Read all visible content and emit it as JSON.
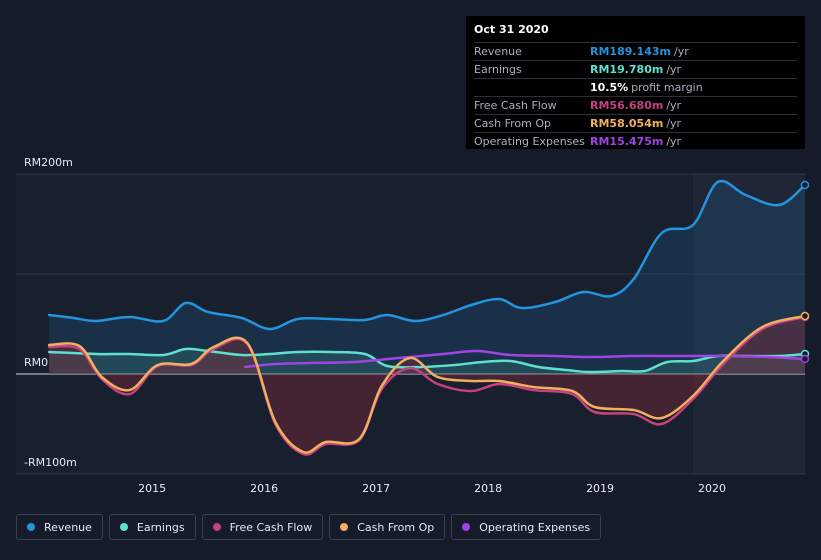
{
  "chart_data": {
    "type": "area",
    "y_tick_labels": [
      {
        "label": "RM200m",
        "value": 200
      },
      {
        "label": "RM0",
        "value": 0
      },
      {
        "label": "-RM100m",
        "value": -100
      }
    ],
    "ylim": [
      -100,
      200
    ],
    "x_tick_labels": [
      "2015",
      "2016",
      "2017",
      "2018",
      "2019",
      "2020"
    ],
    "xlim": [
      2014.07,
      2020.83
    ],
    "forecast_shade_start": 2019.83,
    "grid": true,
    "legend_position": "bottom-left",
    "series": [
      {
        "name": "Revenue",
        "color": "#2394df",
        "fill": true,
        "points": [
          [
            2014.08,
            59
          ],
          [
            2014.3,
            56
          ],
          [
            2014.5,
            53
          ],
          [
            2014.8,
            57
          ],
          [
            2015.1,
            53
          ],
          [
            2015.3,
            71
          ],
          [
            2015.5,
            62
          ],
          [
            2015.8,
            56
          ],
          [
            2016.05,
            45
          ],
          [
            2016.3,
            55
          ],
          [
            2016.6,
            55
          ],
          [
            2016.9,
            54
          ],
          [
            2017.1,
            59
          ],
          [
            2017.35,
            53
          ],
          [
            2017.6,
            59
          ],
          [
            2017.85,
            69
          ],
          [
            2018.1,
            75
          ],
          [
            2018.3,
            66
          ],
          [
            2018.6,
            72
          ],
          [
            2018.85,
            82
          ],
          [
            2019.1,
            78
          ],
          [
            2019.3,
            95
          ],
          [
            2019.55,
            141
          ],
          [
            2019.83,
            149
          ],
          [
            2020.05,
            192
          ],
          [
            2020.3,
            179
          ],
          [
            2020.6,
            169
          ],
          [
            2020.83,
            189
          ]
        ]
      },
      {
        "name": "Earnings",
        "color": "#5ee0ce",
        "fill": true,
        "points": [
          [
            2014.08,
            22
          ],
          [
            2014.5,
            20
          ],
          [
            2014.8,
            20
          ],
          [
            2015.1,
            19
          ],
          [
            2015.3,
            25
          ],
          [
            2015.5,
            23
          ],
          [
            2015.8,
            19
          ],
          [
            2016.05,
            20
          ],
          [
            2016.3,
            22
          ],
          [
            2016.6,
            22
          ],
          [
            2016.9,
            20
          ],
          [
            2017.1,
            8
          ],
          [
            2017.4,
            7
          ],
          [
            2017.7,
            9
          ],
          [
            2017.95,
            12
          ],
          [
            2018.2,
            13
          ],
          [
            2018.45,
            7
          ],
          [
            2018.7,
            4
          ],
          [
            2018.9,
            2
          ],
          [
            2019.2,
            3
          ],
          [
            2019.4,
            3
          ],
          [
            2019.6,
            12
          ],
          [
            2019.83,
            13
          ],
          [
            2020.05,
            18
          ],
          [
            2020.3,
            18
          ],
          [
            2020.6,
            18
          ],
          [
            2020.83,
            20
          ]
        ]
      },
      {
        "name": "Free Cash Flow",
        "color": "#c7417e",
        "fill": false,
        "points": [
          [
            2014.08,
            27
          ],
          [
            2014.35,
            25
          ],
          [
            2014.55,
            -5
          ],
          [
            2014.8,
            -20
          ],
          [
            2015.05,
            8
          ],
          [
            2015.35,
            9
          ],
          [
            2015.55,
            25
          ],
          [
            2015.85,
            30
          ],
          [
            2016.1,
            -50
          ],
          [
            2016.35,
            -80
          ],
          [
            2016.55,
            -70
          ],
          [
            2016.85,
            -66
          ],
          [
            2017.05,
            -15
          ],
          [
            2017.3,
            6
          ],
          [
            2017.55,
            -10
          ],
          [
            2017.85,
            -17
          ],
          [
            2018.1,
            -10
          ],
          [
            2018.4,
            -16
          ],
          [
            2018.75,
            -20
          ],
          [
            2018.95,
            -38
          ],
          [
            2019.3,
            -40
          ],
          [
            2019.55,
            -50
          ],
          [
            2019.83,
            -25
          ],
          [
            2020.1,
            10
          ],
          [
            2020.45,
            45
          ],
          [
            2020.83,
            57
          ]
        ]
      },
      {
        "name": "Cash From Op",
        "color": "#f0b060",
        "fill": true,
        "points": [
          [
            2014.08,
            29
          ],
          [
            2014.35,
            28
          ],
          [
            2014.55,
            -3
          ],
          [
            2014.8,
            -16
          ],
          [
            2015.05,
            9
          ],
          [
            2015.35,
            10
          ],
          [
            2015.55,
            27
          ],
          [
            2015.85,
            31
          ],
          [
            2016.1,
            -48
          ],
          [
            2016.35,
            -78
          ],
          [
            2016.55,
            -68
          ],
          [
            2016.85,
            -65
          ],
          [
            2017.05,
            -12
          ],
          [
            2017.3,
            16
          ],
          [
            2017.55,
            -3
          ],
          [
            2017.85,
            -7
          ],
          [
            2018.1,
            -7
          ],
          [
            2018.4,
            -13
          ],
          [
            2018.75,
            -17
          ],
          [
            2018.95,
            -33
          ],
          [
            2019.3,
            -36
          ],
          [
            2019.55,
            -44
          ],
          [
            2019.83,
            -22
          ],
          [
            2020.1,
            13
          ],
          [
            2020.45,
            47
          ],
          [
            2020.83,
            58
          ]
        ]
      },
      {
        "name": "Operating Expenses",
        "color": "#a044e6",
        "fill": false,
        "points": [
          [
            2015.83,
            7
          ],
          [
            2016.1,
            10
          ],
          [
            2016.4,
            11
          ],
          [
            2016.8,
            12
          ],
          [
            2017.2,
            16
          ],
          [
            2017.6,
            20
          ],
          [
            2017.9,
            23
          ],
          [
            2018.2,
            19
          ],
          [
            2018.6,
            18
          ],
          [
            2018.9,
            17
          ],
          [
            2019.3,
            18
          ],
          [
            2019.6,
            18
          ],
          [
            2019.83,
            18
          ],
          [
            2020.1,
            18
          ],
          [
            2020.5,
            17
          ],
          [
            2020.83,
            15
          ]
        ]
      }
    ]
  },
  "tooltip": {
    "date": "Oct 31 2020",
    "rows": [
      {
        "label": "Revenue",
        "value": "RM189.143m",
        "unit": "/yr",
        "color": "#2394df"
      },
      {
        "label": "Earnings",
        "value": "RM19.780m",
        "unit": "/yr",
        "color": "#5ee0ce"
      },
      {
        "label": "",
        "value": "10.5%",
        "unit": "profit margin",
        "color": "#ffffff"
      },
      {
        "label": "Free Cash Flow",
        "value": "RM56.680m",
        "unit": "/yr",
        "color": "#c7417e"
      },
      {
        "label": "Cash From Op",
        "value": "RM58.054m",
        "unit": "/yr",
        "color": "#f0b060"
      },
      {
        "label": "Operating Expenses",
        "value": "RM15.475m",
        "unit": "/yr",
        "color": "#a044e6"
      }
    ]
  },
  "legend": [
    {
      "label": "Revenue",
      "color": "#2394df"
    },
    {
      "label": "Earnings",
      "color": "#5ee0ce"
    },
    {
      "label": "Free Cash Flow",
      "color": "#c7417e"
    },
    {
      "label": "Cash From Op",
      "color": "#f0b060"
    },
    {
      "label": "Operating Expenses",
      "color": "#a044e6"
    }
  ]
}
